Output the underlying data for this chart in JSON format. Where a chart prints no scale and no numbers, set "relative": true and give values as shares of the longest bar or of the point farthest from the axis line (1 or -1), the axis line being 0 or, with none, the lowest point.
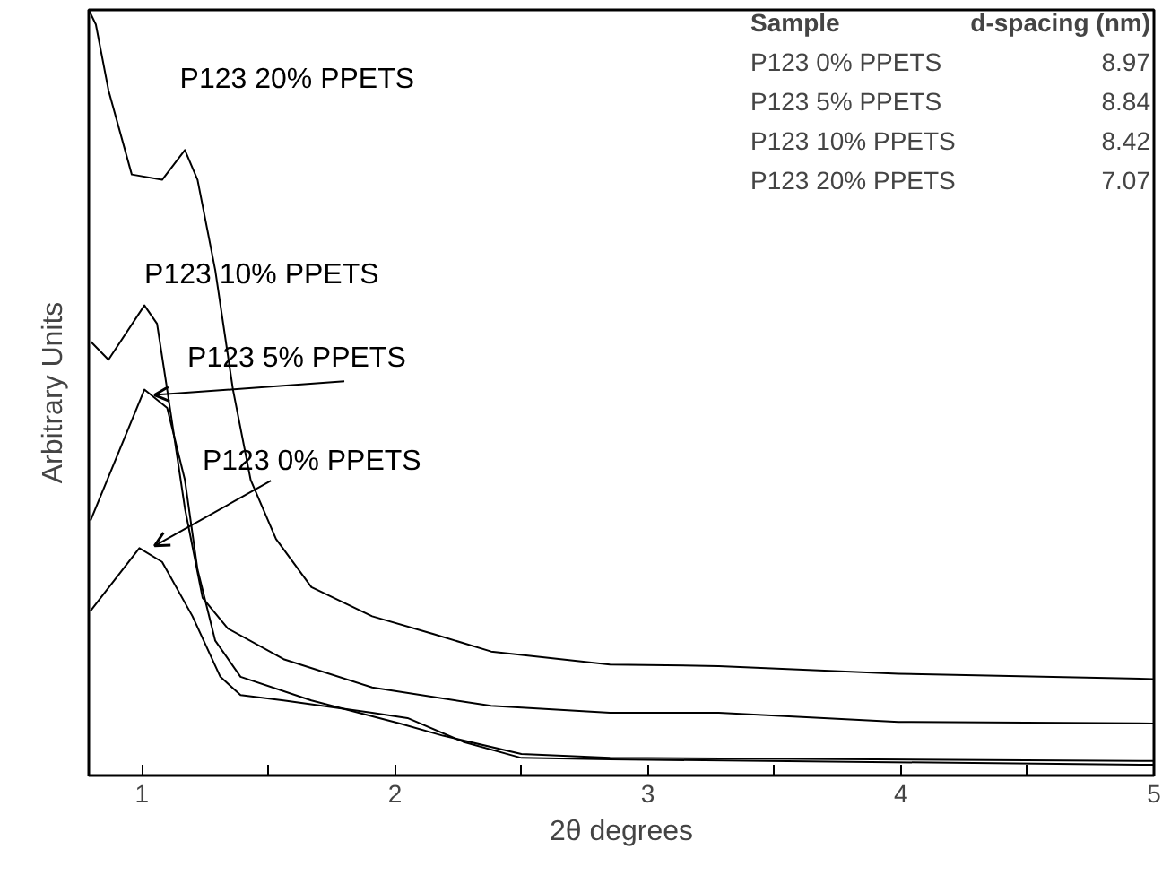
{
  "chart_data": {
    "type": "line",
    "relative": true,
    "xlabel": "2θ degrees",
    "ylabel": "Arbitrary Units",
    "xlim": [
      0.79,
      5
    ],
    "xticks": [
      1,
      {
        "value": 1.5,
        "label": null
      },
      2,
      {
        "value": 2.5,
        "label": null
      },
      3,
      {
        "value": 3.5,
        "label": null
      },
      4,
      {
        "value": 4.5,
        "label": null
      },
      5
    ],
    "grid": false,
    "marker": "none",
    "line_style": "solid",
    "series": [
      {
        "name": "P123 0% PPETS",
        "color": "#000000",
        "x": [
          0.797,
          0.99,
          1.08,
          1.2,
          1.31,
          1.39,
          1.56,
          1.91,
          2.05,
          2.27,
          2.5,
          2.85,
          5.0
        ],
        "values": [
          0.215,
          0.297,
          0.279,
          0.208,
          0.129,
          0.105,
          0.098,
          0.082,
          0.075,
          0.044,
          0.023,
          0.021,
          0.014
        ]
      },
      {
        "name": "P123 5% PPETS",
        "color": "#000000",
        "x": [
          0.797,
          1.01,
          1.1,
          1.17,
          1.22,
          1.29,
          1.39,
          1.67,
          2.02,
          2.19,
          2.5,
          2.85,
          5.0
        ],
        "values": [
          0.333,
          0.504,
          0.48,
          0.386,
          0.269,
          0.176,
          0.129,
          0.098,
          0.068,
          0.052,
          0.028,
          0.023,
          0.019
        ]
      },
      {
        "name": "P123 10% PPETS",
        "color": "#000000",
        "x": [
          0.797,
          0.868,
          1.01,
          1.06,
          1.1,
          1.17,
          1.24,
          1.34,
          1.56,
          1.91,
          2.38,
          2.85,
          3.28,
          3.99,
          5.0
        ],
        "values": [
          0.567,
          0.543,
          0.614,
          0.59,
          0.504,
          0.349,
          0.232,
          0.192,
          0.152,
          0.115,
          0.091,
          0.082,
          0.082,
          0.07,
          0.068
        ]
      },
      {
        "name": "P123 20% PPETS",
        "color": "#000000",
        "x": [
          0.79,
          0.818,
          0.868,
          0.96,
          1.08,
          1.17,
          1.22,
          1.29,
          1.36,
          1.43,
          1.53,
          1.67,
          1.91,
          2.15,
          2.38,
          2.85,
          3.28,
          3.99,
          5.0
        ],
        "values": [
          1.0,
          0.981,
          0.895,
          0.785,
          0.778,
          0.817,
          0.778,
          0.66,
          0.504,
          0.386,
          0.309,
          0.246,
          0.208,
          0.185,
          0.162,
          0.145,
          0.143,
          0.133,
          0.126
        ]
      }
    ],
    "annotations": [
      "Sample",
      "d-spacing (nm)",
      "P123  0% PPETS",
      "8.97",
      "P123  5% PPETS",
      "8.84",
      "P123 10% PPETS",
      "8.42",
      "P123 20% PPETS",
      "7.07"
    ]
  }
}
